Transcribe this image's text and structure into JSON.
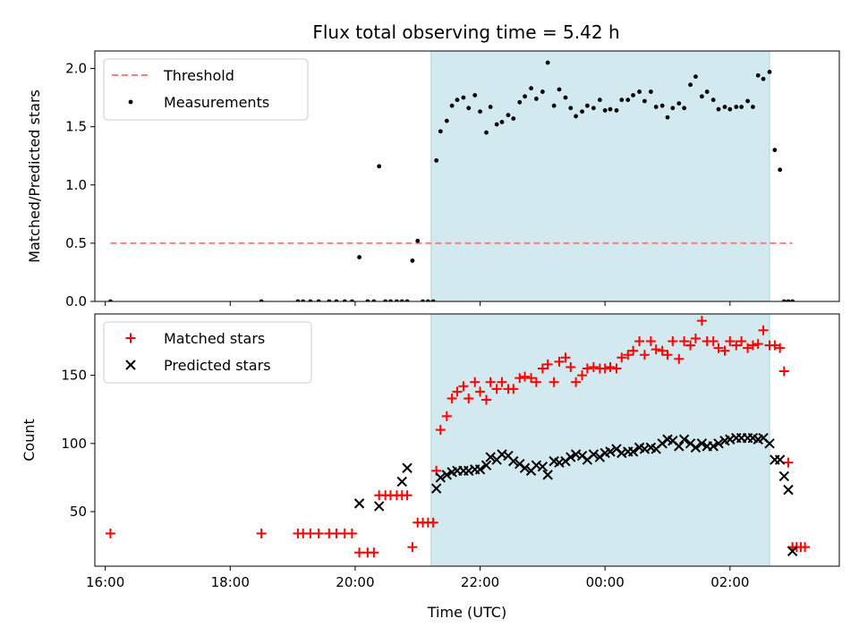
{
  "chart_data": [
    {
      "type": "scatter",
      "title": "Flux total observing time = 5.42 h",
      "ylabel": "Matched/Predicted stars",
      "xlabel": "",
      "xlim": [
        "15:50",
        "03:45"
      ],
      "ylim": [
        0,
        2.15
      ],
      "yticks": [
        0.0,
        0.5,
        1.0,
        1.5,
        2.0
      ],
      "ytick_labels": [
        "0.0",
        "0.5",
        "1.0",
        "1.5",
        "2.0"
      ],
      "grid": false,
      "legend_position": "upper-left",
      "shaded_span": {
        "start": "21:13",
        "end": "02:38",
        "color": "#d3e9f0"
      },
      "threshold": {
        "name": "Threshold",
        "y": 0.5,
        "x_start": "16:05",
        "x_end": "03:00",
        "color": "#ff7f7f"
      },
      "series": [
        {
          "name": "Measurements",
          "color": "#000000",
          "marker": "dot",
          "points": [
            [
              "16:05",
              0
            ],
            [
              "18:30",
              0
            ],
            [
              "19:05",
              0
            ],
            [
              "19:10",
              0
            ],
            [
              "19:17",
              0
            ],
            [
              "19:25",
              0
            ],
            [
              "19:35",
              0
            ],
            [
              "19:42",
              0
            ],
            [
              "19:50",
              0
            ],
            [
              "19:57",
              0
            ],
            [
              "20:04",
              0.38
            ],
            [
              "20:12",
              0
            ],
            [
              "20:18",
              0
            ],
            [
              "20:23",
              1.16
            ],
            [
              "20:29",
              0
            ],
            [
              "20:34",
              0
            ],
            [
              "20:40",
              0
            ],
            [
              "20:45",
              0
            ],
            [
              "20:50",
              0
            ],
            [
              "20:55",
              0.35
            ],
            [
              "21:00",
              0.52
            ],
            [
              "21:05",
              0
            ],
            [
              "21:10",
              0
            ],
            [
              "21:15",
              0
            ],
            [
              "21:18",
              1.21
            ],
            [
              "21:22",
              1.46
            ],
            [
              "21:28",
              1.55
            ],
            [
              "21:33",
              1.68
            ],
            [
              "21:38",
              1.73
            ],
            [
              "21:44",
              1.75
            ],
            [
              "21:49",
              1.66
            ],
            [
              "21:55",
              1.77
            ],
            [
              "22:00",
              1.63
            ],
            [
              "22:06",
              1.45
            ],
            [
              "22:10",
              1.67
            ],
            [
              "22:16",
              1.52
            ],
            [
              "22:21",
              1.54
            ],
            [
              "22:27",
              1.6
            ],
            [
              "22:32",
              1.57
            ],
            [
              "22:38",
              1.71
            ],
            [
              "22:43",
              1.76
            ],
            [
              "22:49",
              1.83
            ],
            [
              "22:54",
              1.74
            ],
            [
              "23:00",
              1.8
            ],
            [
              "23:05",
              2.05
            ],
            [
              "23:11",
              1.68
            ],
            [
              "23:16",
              1.82
            ],
            [
              "23:22",
              1.75
            ],
            [
              "23:27",
              1.66
            ],
            [
              "23:32",
              1.59
            ],
            [
              "23:38",
              1.63
            ],
            [
              "23:43",
              1.68
            ],
            [
              "23:49",
              1.66
            ],
            [
              "23:55",
              1.73
            ],
            [
              "00:00",
              1.64
            ],
            [
              "00:05",
              1.65
            ],
            [
              "00:11",
              1.64
            ],
            [
              "00:16",
              1.73
            ],
            [
              "00:22",
              1.73
            ],
            [
              "00:27",
              1.77
            ],
            [
              "00:33",
              1.8
            ],
            [
              "00:38",
              1.72
            ],
            [
              "00:44",
              1.8
            ],
            [
              "00:49",
              1.67
            ],
            [
              "00:55",
              1.68
            ],
            [
              "01:00",
              1.58
            ],
            [
              "01:05",
              1.66
            ],
            [
              "01:11",
              1.7
            ],
            [
              "01:16",
              1.66
            ],
            [
              "01:22",
              1.86
            ],
            [
              "01:27",
              1.93
            ],
            [
              "01:33",
              1.76
            ],
            [
              "01:38",
              1.8
            ],
            [
              "01:44",
              1.73
            ],
            [
              "01:49",
              1.65
            ],
            [
              "01:55",
              1.67
            ],
            [
              "02:00",
              1.65
            ],
            [
              "02:06",
              1.67
            ],
            [
              "02:11",
              1.67
            ],
            [
              "02:17",
              1.72
            ],
            [
              "02:22",
              1.67
            ],
            [
              "02:27",
              1.94
            ],
            [
              "02:32",
              1.91
            ],
            [
              "02:38",
              1.97
            ],
            [
              "02:43",
              1.3
            ],
            [
              "02:48",
              1.13
            ],
            [
              "02:52",
              0
            ],
            [
              "02:56",
              0
            ],
            [
              "03:00",
              0
            ]
          ]
        }
      ]
    },
    {
      "type": "scatter",
      "title": "",
      "ylabel": "Count",
      "xlabel": "Time (UTC)",
      "xlim": [
        "15:50",
        "03:45"
      ],
      "ylim": [
        10,
        195
      ],
      "yticks": [
        50,
        100,
        150
      ],
      "ytick_labels": [
        "50",
        "100",
        "150"
      ],
      "xticks": [
        "16:00",
        "18:00",
        "20:00",
        "22:00",
        "00:00",
        "02:00"
      ],
      "grid": false,
      "legend_position": "upper-left",
      "shaded_span": {
        "start": "21:13",
        "end": "02:38",
        "color": "#d3e9f0"
      },
      "series": [
        {
          "name": "Matched stars",
          "color": "#ff0000",
          "marker": "plus",
          "points": [
            [
              "16:05",
              34
            ],
            [
              "18:30",
              34
            ],
            [
              "19:05",
              34
            ],
            [
              "19:10",
              34
            ],
            [
              "19:17",
              34
            ],
            [
              "19:25",
              34
            ],
            [
              "19:35",
              34
            ],
            [
              "19:42",
              34
            ],
            [
              "19:50",
              34
            ],
            [
              "19:57",
              34
            ],
            [
              "20:04",
              20
            ],
            [
              "20:12",
              20
            ],
            [
              "20:18",
              20
            ],
            [
              "20:23",
              62
            ],
            [
              "20:29",
              62
            ],
            [
              "20:34",
              62
            ],
            [
              "20:40",
              62
            ],
            [
              "20:45",
              62
            ],
            [
              "20:50",
              62
            ],
            [
              "20:55",
              24
            ],
            [
              "21:00",
              42
            ],
            [
              "21:05",
              42
            ],
            [
              "21:10",
              42
            ],
            [
              "21:15",
              42
            ],
            [
              "21:18",
              80
            ],
            [
              "21:22",
              110
            ],
            [
              "21:28",
              120
            ],
            [
              "21:33",
              133
            ],
            [
              "21:38",
              138
            ],
            [
              "21:44",
              142
            ],
            [
              "21:49",
              133
            ],
            [
              "21:55",
              145
            ],
            [
              "22:00",
              138
            ],
            [
              "22:06",
              132
            ],
            [
              "22:10",
              145
            ],
            [
              "22:16",
              140
            ],
            [
              "22:21",
              145
            ],
            [
              "22:27",
              140
            ],
            [
              "22:32",
              140
            ],
            [
              "22:38",
              148
            ],
            [
              "22:43",
              149
            ],
            [
              "22:49",
              148
            ],
            [
              "22:54",
              145
            ],
            [
              "23:00",
              155
            ],
            [
              "23:05",
              158
            ],
            [
              "23:11",
              145
            ],
            [
              "23:16",
              160
            ],
            [
              "23:22",
              163
            ],
            [
              "23:27",
              156
            ],
            [
              "23:32",
              145
            ],
            [
              "23:38",
              150
            ],
            [
              "23:43",
              155
            ],
            [
              "23:49",
              156
            ],
            [
              "23:55",
              155
            ],
            [
              "00:00",
              155
            ],
            [
              "00:05",
              156
            ],
            [
              "00:11",
              155
            ],
            [
              "00:16",
              163
            ],
            [
              "00:22",
              165
            ],
            [
              "00:27",
              168
            ],
            [
              "00:33",
              175
            ],
            [
              "00:38",
              165
            ],
            [
              "00:44",
              175
            ],
            [
              "00:49",
              169
            ],
            [
              "00:55",
              168
            ],
            [
              "01:00",
              165
            ],
            [
              "01:05",
              175
            ],
            [
              "01:11",
              162
            ],
            [
              "01:16",
              175
            ],
            [
              "01:22",
              172
            ],
            [
              "01:27",
              177
            ],
            [
              "01:33",
              190
            ],
            [
              "01:38",
              175
            ],
            [
              "01:44",
              175
            ],
            [
              "01:49",
              170
            ],
            [
              "01:55",
              168
            ],
            [
              "02:00",
              175
            ],
            [
              "02:06",
              172
            ],
            [
              "02:11",
              175
            ],
            [
              "02:17",
              170
            ],
            [
              "02:22",
              172
            ],
            [
              "02:27",
              173
            ],
            [
              "02:32",
              183
            ],
            [
              "02:38",
              172
            ],
            [
              "02:43",
              172
            ],
            [
              "02:48",
              170
            ],
            [
              "02:52",
              153
            ],
            [
              "02:56",
              86
            ],
            [
              "03:00",
              24
            ],
            [
              "03:04",
              24
            ],
            [
              "03:08",
              24
            ],
            [
              "03:12",
              24
            ]
          ]
        },
        {
          "name": "Predicted stars",
          "color": "#000000",
          "marker": "x",
          "points": [
            [
              "20:04",
              56
            ],
            [
              "20:23",
              54
            ],
            [
              "20:45",
              72
            ],
            [
              "20:50",
              82
            ],
            [
              "21:18",
              67
            ],
            [
              "21:22",
              75
            ],
            [
              "21:28",
              77
            ],
            [
              "21:33",
              79
            ],
            [
              "21:38",
              80
            ],
            [
              "21:44",
              80
            ],
            [
              "21:49",
              80
            ],
            [
              "21:55",
              81
            ],
            [
              "22:00",
              81
            ],
            [
              "22:06",
              84
            ],
            [
              "22:10",
              90
            ],
            [
              "22:16",
              88
            ],
            [
              "22:21",
              92
            ],
            [
              "22:27",
              91
            ],
            [
              "22:32",
              87
            ],
            [
              "22:38",
              85
            ],
            [
              "22:43",
              82
            ],
            [
              "22:49",
              80
            ],
            [
              "22:54",
              84
            ],
            [
              "23:00",
              83
            ],
            [
              "23:05",
              77
            ],
            [
              "23:11",
              87
            ],
            [
              "23:16",
              86
            ],
            [
              "23:22",
              87
            ],
            [
              "23:27",
              90
            ],
            [
              "23:32",
              92
            ],
            [
              "23:38",
              91
            ],
            [
              "23:43",
              88
            ],
            [
              "23:49",
              92
            ],
            [
              "23:55",
              90
            ],
            [
              "00:00",
              93
            ],
            [
              "00:05",
              94
            ],
            [
              "00:11",
              96
            ],
            [
              "00:16",
              93
            ],
            [
              "00:22",
              94
            ],
            [
              "00:27",
              94
            ],
            [
              "00:33",
              97
            ],
            [
              "00:38",
              96
            ],
            [
              "00:44",
              97
            ],
            [
              "00:49",
              96
            ],
            [
              "00:55",
              100
            ],
            [
              "01:00",
              103
            ],
            [
              "01:05",
              102
            ],
            [
              "01:11",
              98
            ],
            [
              "01:16",
              103
            ],
            [
              "01:22",
              100
            ],
            [
              "01:27",
              97
            ],
            [
              "01:33",
              100
            ],
            [
              "01:38",
              98
            ],
            [
              "01:44",
              98
            ],
            [
              "01:49",
              100
            ],
            [
              "01:55",
              102
            ],
            [
              "02:00",
              103
            ],
            [
              "02:06",
              104
            ],
            [
              "02:11",
              104
            ],
            [
              "02:17",
              104
            ],
            [
              "02:22",
              104
            ],
            [
              "02:27",
              103
            ],
            [
              "02:32",
              104
            ],
            [
              "02:38",
              100
            ],
            [
              "02:43",
              88
            ],
            [
              "02:48",
              88
            ],
            [
              "02:52",
              76
            ],
            [
              "02:56",
              66
            ],
            [
              "03:00",
              21
            ]
          ]
        }
      ]
    }
  ]
}
